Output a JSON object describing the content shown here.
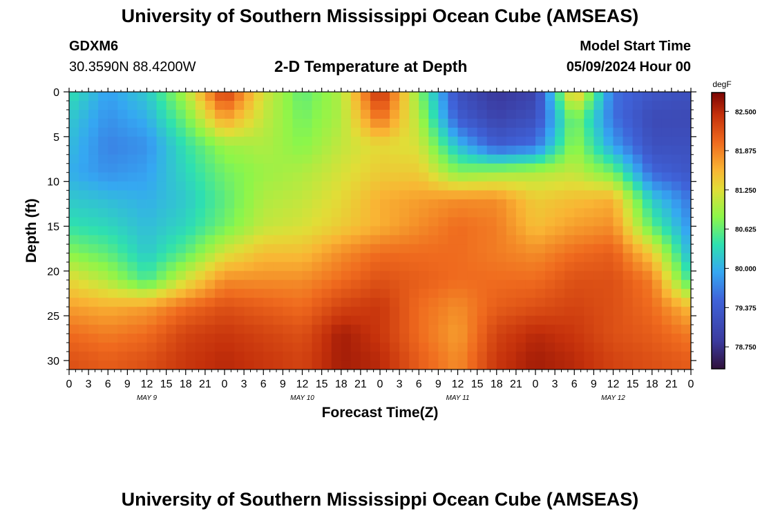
{
  "header": {
    "title": "University of Southern Mississippi Ocean Cube (AMSEAS)",
    "station_id": "GDXM6",
    "station_coords": "30.3590N  88.4200W",
    "plot_title": "2-D Temperature at Depth",
    "model_start_label": "Model Start Time",
    "model_start_value": "05/09/2024 Hour 00"
  },
  "footer": {
    "title": "University of Southern Mississippi Ocean Cube (AMSEAS)"
  },
  "chart_data": {
    "type": "heatmap",
    "title": "2-D Temperature at Depth",
    "xlabel": "Forecast Time(Z)",
    "ylabel": "Depth (ft)",
    "colorbar_label": "degF",
    "colorbar_ticks": [
      "82.500",
      "81.875",
      "81.250",
      "80.625",
      "80.000",
      "79.375",
      "78.750"
    ],
    "colorbar_range": [
      78.4,
      82.8
    ],
    "xlim": [
      0,
      96
    ],
    "ylim": [
      31,
      0
    ],
    "x_ticks": [
      "0",
      "3",
      "6",
      "9",
      "12",
      "15",
      "18",
      "21",
      "0",
      "3",
      "6",
      "9",
      "12",
      "15",
      "18",
      "21",
      "0",
      "3",
      "6",
      "9",
      "12",
      "15",
      "18",
      "21",
      "0",
      "3",
      "6",
      "9",
      "12",
      "15",
      "18",
      "21",
      "0"
    ],
    "day_labels": [
      "MAY 9",
      "MAY 10",
      "MAY 11",
      "MAY 12"
    ],
    "y_ticks": [
      "0",
      "5",
      "10",
      "15",
      "20",
      "25",
      "30"
    ],
    "x_hours": [
      0,
      6,
      12,
      18,
      24,
      30,
      36,
      42,
      48,
      54,
      60,
      66,
      72,
      78,
      84,
      90,
      96
    ],
    "depths_ft": [
      0,
      3,
      6,
      9,
      12,
      15,
      18,
      21,
      24,
      27,
      30
    ],
    "values": [
      [
        80.4,
        79.9,
        80.2,
        81.0,
        82.4,
        81.2,
        80.6,
        81.0,
        82.5,
        80.8,
        79.2,
        78.8,
        79.0,
        81.6,
        79.6,
        79.3,
        79.2
      ],
      [
        80.2,
        79.8,
        80.0,
        80.7,
        81.7,
        81.1,
        80.7,
        81.0,
        82.0,
        81.0,
        79.4,
        79.0,
        79.2,
        80.8,
        79.6,
        79.1,
        79.1
      ],
      [
        80.1,
        79.7,
        79.8,
        80.4,
        80.9,
        81.0,
        80.8,
        81.1,
        81.3,
        81.2,
        80.1,
        79.4,
        79.6,
        80.9,
        79.9,
        79.2,
        79.2
      ],
      [
        80.0,
        79.8,
        79.9,
        80.3,
        80.7,
        80.9,
        81.0,
        81.2,
        81.4,
        81.4,
        80.8,
        80.9,
        81.0,
        81.1,
        80.7,
        79.5,
        79.3
      ],
      [
        80.2,
        80.1,
        80.0,
        80.2,
        80.6,
        81.0,
        81.1,
        81.3,
        81.6,
        81.7,
        81.8,
        81.8,
        81.4,
        81.5,
        81.6,
        80.2,
        79.6
      ],
      [
        80.4,
        80.3,
        80.1,
        80.3,
        80.7,
        81.1,
        81.2,
        81.4,
        81.6,
        81.8,
        82.0,
        81.9,
        81.5,
        81.7,
        81.8,
        80.6,
        79.8
      ],
      [
        80.8,
        80.6,
        80.2,
        80.6,
        81.2,
        81.5,
        81.5,
        81.8,
        82.0,
        82.0,
        82.0,
        81.9,
        81.8,
        82.0,
        82.1,
        81.4,
        80.0
      ],
      [
        81.3,
        81.0,
        80.5,
        81.2,
        81.8,
        81.8,
        81.8,
        82.0,
        82.2,
        82.1,
        82.0,
        82.0,
        82.0,
        82.2,
        82.2,
        81.9,
        80.4
      ],
      [
        81.7,
        81.6,
        81.7,
        82.0,
        82.2,
        82.1,
        82.0,
        82.3,
        82.4,
        82.0,
        81.8,
        82.1,
        82.2,
        82.3,
        82.2,
        82.0,
        81.5
      ],
      [
        82.0,
        81.9,
        82.0,
        82.3,
        82.4,
        82.3,
        82.2,
        82.6,
        82.4,
        82.0,
        81.7,
        82.3,
        82.5,
        82.4,
        82.2,
        82.1,
        81.9
      ],
      [
        82.2,
        82.1,
        82.2,
        82.4,
        82.5,
        82.4,
        82.3,
        82.6,
        82.5,
        82.1,
        81.8,
        82.4,
        82.6,
        82.5,
        82.3,
        82.2,
        82.1
      ]
    ]
  }
}
